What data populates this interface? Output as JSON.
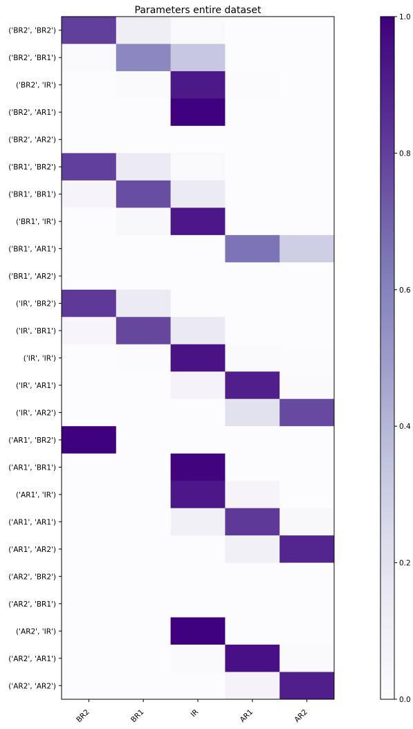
{
  "chart_data": {
    "type": "heatmap",
    "title": "Parameters entire dataset",
    "colormap": "Purples",
    "x_categories": [
      "BR2",
      "BR1",
      "IR",
      "AR1",
      "AR2"
    ],
    "y_categories": [
      "('BR2', 'BR2')",
      "('BR2', 'BR1')",
      "('BR2', 'IR')",
      "('BR2', 'AR1')",
      "('BR2', 'AR2')",
      "('BR1', 'BR2')",
      "('BR1', 'BR1')",
      "('BR1', 'IR')",
      "('BR1', 'AR1')",
      "('BR1', 'AR2')",
      "('IR', 'BR2')",
      "('IR', 'BR1')",
      "('IR', 'IR')",
      "('IR', 'AR1')",
      "('IR', 'AR2')",
      "('AR1', 'BR2')",
      "('AR1', 'BR1')",
      "('AR1', 'IR')",
      "('AR1', 'AR1')",
      "('AR1', 'AR2')",
      "('AR2', 'BR2')",
      "('AR2', 'BR1')",
      "('AR2', 'IR')",
      "('AR2', 'AR1')",
      "('AR2', 'AR2')"
    ],
    "values": [
      [
        0.8,
        0.12,
        0.03,
        0.0,
        0.0
      ],
      [
        0.03,
        0.58,
        0.33,
        0.0,
        0.0
      ],
      [
        0.0,
        0.02,
        0.92,
        0.01,
        0.0
      ],
      [
        0.0,
        0.0,
        1.0,
        0.0,
        0.0
      ],
      [
        0.0,
        0.0,
        0.0,
        0.0,
        0.0
      ],
      [
        0.8,
        0.14,
        0.03,
        0.0,
        0.0
      ],
      [
        0.06,
        0.76,
        0.14,
        0.0,
        0.0
      ],
      [
        0.0,
        0.04,
        0.93,
        0.0,
        0.0
      ],
      [
        0.0,
        0.0,
        0.0,
        0.65,
        0.3
      ],
      [
        0.0,
        0.0,
        0.0,
        0.0,
        0.0
      ],
      [
        0.82,
        0.14,
        0.0,
        0.0,
        0.0
      ],
      [
        0.05,
        0.78,
        0.15,
        0.0,
        0.0
      ],
      [
        0.0,
        0.01,
        0.94,
        0.02,
        0.01
      ],
      [
        0.0,
        0.0,
        0.07,
        0.9,
        0.02
      ],
      [
        0.0,
        0.0,
        0.0,
        0.2,
        0.77
      ],
      [
        1.0,
        0.0,
        0.0,
        0.0,
        0.0
      ],
      [
        0.0,
        0.0,
        0.99,
        0.0,
        0.0
      ],
      [
        0.0,
        0.0,
        0.93,
        0.06,
        0.0
      ],
      [
        0.0,
        0.0,
        0.1,
        0.82,
        0.04
      ],
      [
        0.0,
        0.0,
        0.0,
        0.1,
        0.88
      ],
      [
        0.0,
        0.0,
        0.0,
        0.0,
        0.0
      ],
      [
        0.0,
        0.0,
        0.0,
        0.0,
        0.0
      ],
      [
        0.0,
        0.0,
        1.0,
        0.0,
        0.0
      ],
      [
        0.0,
        0.0,
        0.02,
        0.95,
        0.02
      ],
      [
        0.0,
        0.0,
        0.0,
        0.07,
        0.9
      ]
    ],
    "colorbar": {
      "range": [
        0,
        1
      ],
      "ticks": [
        0.0,
        0.2,
        0.4,
        0.6,
        0.8,
        1.0
      ],
      "tick_labels": [
        "0.0",
        "0.2",
        "0.4",
        "0.6",
        "0.8",
        "1.0"
      ]
    },
    "xlabel": "",
    "ylabel": ""
  }
}
